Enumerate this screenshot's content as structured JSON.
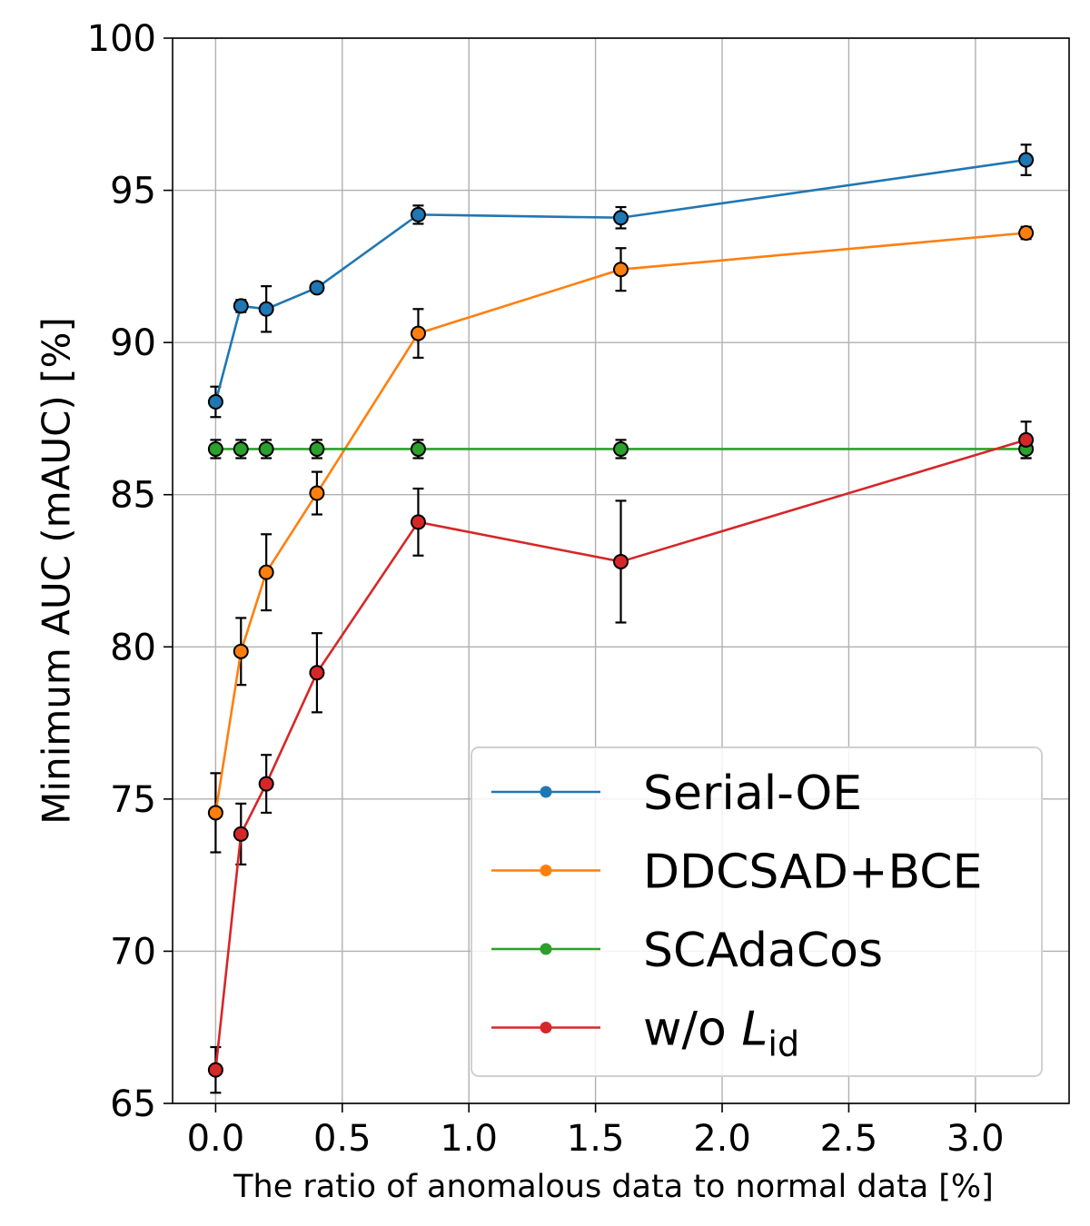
{
  "chart_data": {
    "type": "line",
    "title": "",
    "xlabel": "The ratio of anomalous data to normal data [%]",
    "ylabel": "Minimum AUC (mAUC) [%]",
    "xlim": [
      -0.17,
      3.37
    ],
    "ylim": [
      65,
      100
    ],
    "xticks": [
      "0.0",
      "0.5",
      "1.0",
      "1.5",
      "2.0",
      "2.5",
      "3.0"
    ],
    "yticks": [
      "65",
      "70",
      "75",
      "80",
      "85",
      "90",
      "95",
      "100"
    ],
    "grid": true,
    "legend_position": "lower-right",
    "x": [
      0.0,
      0.1,
      0.2,
      0.4,
      0.8,
      1.6,
      3.2
    ],
    "series": [
      {
        "name": "Serial-OE",
        "color": "#1f77b4",
        "values": [
          88.05,
          91.2,
          91.1,
          91.8,
          94.2,
          94.1,
          96.0
        ],
        "errors": [
          0.5,
          0.2,
          0.75,
          0.15,
          0.3,
          0.35,
          0.5
        ]
      },
      {
        "name": "DDCSAD+BCE",
        "color": "#ff7f0e",
        "values": [
          74.55,
          79.85,
          82.45,
          85.05,
          90.3,
          92.4,
          93.6
        ],
        "errors": [
          1.3,
          1.1,
          1.25,
          0.7,
          0.8,
          0.7,
          0.2
        ]
      },
      {
        "name": "SCAdaCos",
        "color": "#2ca02c",
        "values": [
          86.5,
          86.5,
          86.5,
          86.5,
          86.5,
          86.5,
          86.5
        ],
        "errors": [
          0.3,
          0.3,
          0.3,
          0.3,
          0.3,
          0.3,
          0.3
        ]
      },
      {
        "name": "w/o L",
        "name_subscript": "id",
        "color": "#d62728",
        "values": [
          66.1,
          73.85,
          75.5,
          79.15,
          84.1,
          82.8,
          86.8
        ],
        "errors": [
          0.75,
          1.0,
          0.95,
          1.3,
          1.1,
          2.0,
          0.6
        ]
      }
    ]
  }
}
